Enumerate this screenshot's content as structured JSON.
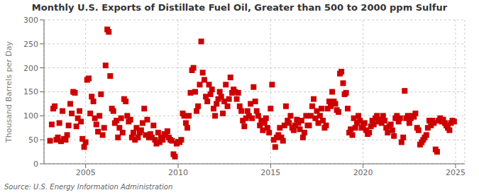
{
  "chart_data": {
    "type": "scatter",
    "title": "Monthly U.S. Exports of Distillate Fuel Oil, Greater than 500 to 2000 ppm Sulfur",
    "y_label": "Thousand Barrels per Day",
    "annotation": "Source: U.S. Energy Information Administration",
    "color": "#cc0000",
    "marker": "square",
    "grid": true,
    "xlim": [
      2002.75,
      2025.5
    ],
    "xticks": [
      2005,
      2010,
      2015,
      2020,
      2025
    ],
    "ylim": [
      0,
      300
    ],
    "yticks": [
      0,
      50,
      100,
      150,
      200,
      250,
      300
    ],
    "x": [
      2003.08,
      2003.17,
      2003.25,
      2003.33,
      2003.42,
      2003.5,
      2003.58,
      2003.67,
      2003.75,
      2003.83,
      2003.92,
      2004.0,
      2004.08,
      2004.17,
      2004.25,
      2004.33,
      2004.42,
      2004.5,
      2004.58,
      2004.67,
      2004.75,
      2004.83,
      2004.92,
      2005.0,
      2005.08,
      2005.17,
      2005.25,
      2005.33,
      2005.42,
      2005.5,
      2005.58,
      2005.67,
      2005.75,
      2005.83,
      2005.92,
      2006.0,
      2006.08,
      2006.17,
      2006.25,
      2006.33,
      2006.42,
      2006.5,
      2006.58,
      2006.67,
      2006.75,
      2006.83,
      2006.92,
      2007.0,
      2007.08,
      2007.17,
      2007.25,
      2007.33,
      2007.42,
      2007.5,
      2007.58,
      2007.67,
      2007.75,
      2007.83,
      2007.92,
      2008.0,
      2008.08,
      2008.17,
      2008.25,
      2008.33,
      2008.42,
      2008.5,
      2008.58,
      2008.67,
      2008.75,
      2008.83,
      2008.92,
      2009.0,
      2009.08,
      2009.17,
      2009.25,
      2009.33,
      2009.42,
      2009.5,
      2009.58,
      2009.67,
      2009.75,
      2009.83,
      2009.92,
      2010.0,
      2010.08,
      2010.17,
      2010.25,
      2010.33,
      2010.42,
      2010.5,
      2010.58,
      2010.67,
      2010.75,
      2010.83,
      2010.92,
      2011.0,
      2011.08,
      2011.17,
      2011.25,
      2011.33,
      2011.42,
      2011.5,
      2011.58,
      2011.67,
      2011.75,
      2011.83,
      2011.92,
      2012.0,
      2012.08,
      2012.17,
      2012.25,
      2012.33,
      2012.42,
      2012.5,
      2012.58,
      2012.67,
      2012.75,
      2012.83,
      2012.92,
      2013.0,
      2013.08,
      2013.17,
      2013.25,
      2013.33,
      2013.42,
      2013.5,
      2013.58,
      2013.67,
      2013.75,
      2013.83,
      2013.92,
      2014.0,
      2014.08,
      2014.17,
      2014.25,
      2014.33,
      2014.42,
      2014.5,
      2014.58,
      2014.67,
      2014.75,
      2014.83,
      2014.92,
      2015.0,
      2015.08,
      2015.17,
      2015.25,
      2015.33,
      2015.42,
      2015.5,
      2015.58,
      2015.67,
      2015.75,
      2015.83,
      2015.92,
      2016.0,
      2016.08,
      2016.17,
      2016.25,
      2016.33,
      2016.42,
      2016.5,
      2016.58,
      2016.67,
      2016.75,
      2016.83,
      2016.92,
      2017.0,
      2017.08,
      2017.17,
      2017.25,
      2017.33,
      2017.42,
      2017.5,
      2017.58,
      2017.67,
      2017.75,
      2017.83,
      2017.92,
      2018.0,
      2018.08,
      2018.17,
      2018.25,
      2018.33,
      2018.42,
      2018.5,
      2018.58,
      2018.67,
      2018.75,
      2018.83,
      2018.92,
      2019.0,
      2019.08,
      2019.17,
      2019.25,
      2019.33,
      2019.42,
      2019.5,
      2019.58,
      2019.67,
      2019.75,
      2019.83,
      2019.92,
      2020.0,
      2020.08,
      2020.17,
      2020.25,
      2020.33,
      2020.42,
      2020.5,
      2020.58,
      2020.67,
      2020.75,
      2020.83,
      2020.92,
      2021.0,
      2021.08,
      2021.17,
      2021.25,
      2021.33,
      2021.42,
      2021.5,
      2021.58,
      2021.67,
      2021.75,
      2021.83,
      2021.92,
      2022.0,
      2022.08,
      2022.17,
      2022.25,
      2022.33,
      2022.42,
      2022.5,
      2022.58,
      2022.67,
      2022.75,
      2022.83,
      2022.92,
      2023.0,
      2023.08,
      2023.17,
      2023.25,
      2023.33,
      2023.42,
      2023.5,
      2023.58,
      2023.67,
      2023.75,
      2023.83,
      2023.92,
      2024.0,
      2024.08,
      2024.17,
      2024.25,
      2024.33,
      2024.42,
      2024.5,
      2024.58,
      2024.67,
      2024.75,
      2024.83,
      2024.92
    ],
    "values": [
      48,
      82,
      115,
      120,
      50,
      55,
      85,
      47,
      110,
      52,
      50,
      60,
      80,
      125,
      105,
      150,
      148,
      78,
      95,
      110,
      88,
      52,
      35,
      45,
      175,
      178,
      105,
      140,
      130,
      95,
      82,
      67,
      100,
      145,
      60,
      75,
      205,
      280,
      275,
      183,
      115,
      110,
      85,
      90,
      55,
      75,
      95,
      65,
      135,
      130,
      100,
      88,
      92,
      55,
      65,
      50,
      75,
      55,
      65,
      70,
      85,
      115,
      60,
      92,
      55,
      62,
      55,
      80,
      50,
      42,
      65,
      45,
      55,
      50,
      62,
      60,
      68,
      55,
      50,
      48,
      20,
      15,
      42,
      46,
      45,
      50,
      105,
      100,
      85,
      75,
      100,
      148,
      195,
      200,
      150,
      110,
      120,
      165,
      255,
      190,
      175,
      140,
      130,
      165,
      145,
      155,
      115,
      100,
      125,
      135,
      150,
      140,
      105,
      130,
      165,
      120,
      135,
      180,
      148,
      155,
      150,
      135,
      148,
      120,
      110,
      90,
      78,
      95,
      110,
      100,
      125,
      95,
      160,
      130,
      110,
      100,
      80,
      90,
      70,
      85,
      95,
      75,
      65,
      115,
      165,
      50,
      35,
      55,
      60,
      75,
      55,
      48,
      80,
      120,
      90,
      85,
      100,
      75,
      70,
      80,
      92,
      85,
      72,
      90,
      55,
      65,
      100,
      80,
      80,
      100,
      120,
      135,
      95,
      110,
      85,
      100,
      115,
      90,
      75,
      80,
      115,
      130,
      120,
      150,
      130,
      125,
      112,
      108,
      188,
      192,
      168,
      145,
      148,
      115,
      65,
      72,
      60,
      95,
      75,
      85,
      100,
      90,
      75,
      80,
      85,
      70,
      62,
      65,
      78,
      90,
      82,
      95,
      100,
      88,
      92,
      85,
      100,
      90,
      75,
      65,
      78,
      82,
      70,
      58,
      95,
      100,
      88,
      95,
      45,
      55,
      152,
      95,
      100,
      85,
      95,
      100,
      98,
      105,
      75,
      70,
      40,
      45,
      50,
      55,
      60,
      75,
      90,
      80,
      90,
      85,
      30,
      25,
      90,
      95,
      88,
      92,
      85,
      80,
      75,
      70,
      85,
      90,
      88
    ]
  }
}
